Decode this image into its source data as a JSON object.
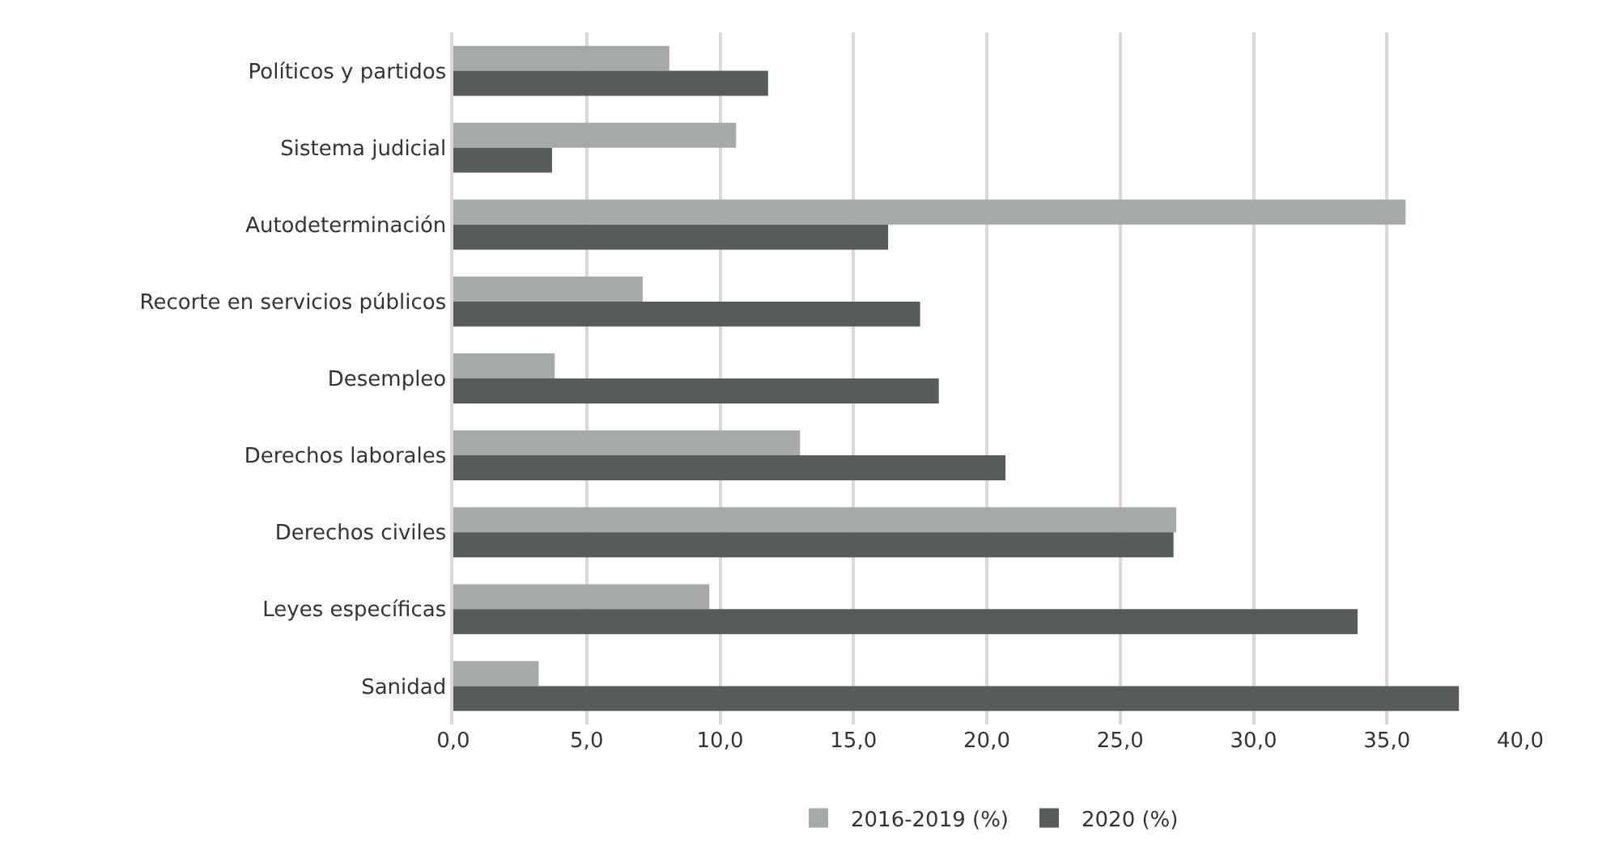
{
  "chart_data": {
    "type": "bar",
    "orientation": "horizontal",
    "categories": [
      "Políticos y partidos",
      "Sistema judicial",
      "Autodeterminación",
      "Recorte en servicios públicos",
      "Desempleo",
      "Derechos laborales",
      "Derechos civiles",
      "Leyes específicas",
      "Sanidad"
    ],
    "series": [
      {
        "name": "2016-2019 (%)",
        "color": "#a6a9aa",
        "values": [
          8.1,
          10.6,
          35.7,
          7.1,
          3.8,
          13.0,
          27.1,
          9.6,
          3.2
        ]
      },
      {
        "name": "2020 (%)",
        "color": "#575b5c",
        "values": [
          11.8,
          3.7,
          16.3,
          17.5,
          18.2,
          20.7,
          27.0,
          33.9,
          37.7
        ]
      }
    ],
    "xlim": [
      0,
      40
    ],
    "xticks": [
      {
        "value": 0,
        "label": "0,0"
      },
      {
        "value": 5,
        "label": "5,0"
      },
      {
        "value": 10,
        "label": "10,0"
      },
      {
        "value": 15,
        "label": "15,0"
      },
      {
        "value": 20,
        "label": "20,0"
      },
      {
        "value": 25,
        "label": "25,0"
      },
      {
        "value": 30,
        "label": "30,0"
      },
      {
        "value": 35,
        "label": "35,0"
      },
      {
        "value": 40,
        "label": "40,0"
      }
    ],
    "grid": "x",
    "legend": "bottom"
  }
}
